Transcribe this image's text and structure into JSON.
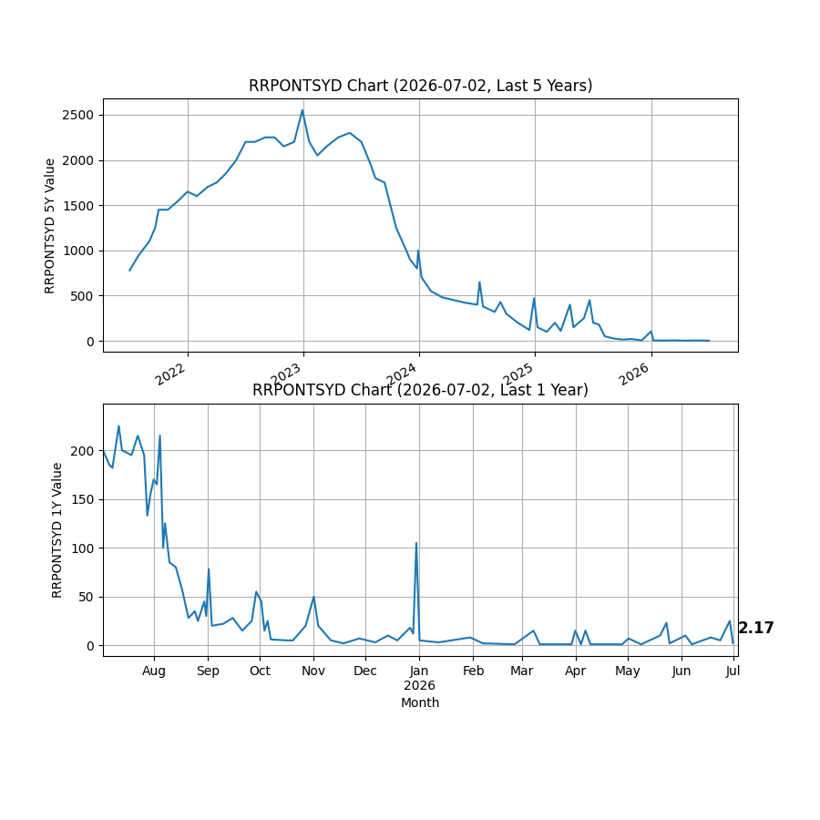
{
  "chart_data": [
    {
      "type": "line",
      "title": "RRPONTSYD Chart (2026-07-02, Last 5 Years)",
      "y_label": "RRPONTSYD 5Y Value",
      "color": "#1f77b4",
      "grid": true,
      "x": [
        2021.5,
        2021.58,
        2021.67,
        2021.72,
        2021.75,
        2021.83,
        2021.92,
        2022.0,
        2022.08,
        2022.17,
        2022.25,
        2022.33,
        2022.42,
        2022.5,
        2022.58,
        2022.67,
        2022.75,
        2022.83,
        2022.92,
        2022.99,
        2023.05,
        2023.12,
        2023.2,
        2023.3,
        2023.4,
        2023.5,
        2023.58,
        2023.62,
        2023.7,
        2023.75,
        2023.8,
        2023.87,
        2023.92,
        2023.98,
        2023.99,
        2024.02,
        2024.1,
        2024.2,
        2024.3,
        2024.4,
        2024.5,
        2024.52,
        2024.55,
        2024.65,
        2024.7,
        2024.75,
        2024.85,
        2024.95,
        2024.99,
        2025.02,
        2025.1,
        2025.17,
        2025.22,
        2025.3,
        2025.33,
        2025.42,
        2025.47,
        2025.5,
        2025.55,
        2025.6,
        2025.68,
        2025.75,
        2025.83,
        2025.92,
        2026.0,
        2026.02,
        2026.1,
        2026.2,
        2026.3,
        2026.4,
        2026.5
      ],
      "values": [
        780,
        950,
        1100,
        1250,
        1450,
        1450,
        1550,
        1650,
        1600,
        1700,
        1750,
        1850,
        2000,
        2200,
        2200,
        2250,
        2250,
        2150,
        2200,
        2550,
        2200,
        2050,
        2150,
        2250,
        2300,
        2200,
        1950,
        1800,
        1750,
        1500,
        1250,
        1050,
        900,
        800,
        1000,
        700,
        550,
        480,
        450,
        420,
        400,
        650,
        380,
        320,
        430,
        300,
        200,
        120,
        470,
        150,
        100,
        200,
        110,
        400,
        150,
        250,
        450,
        200,
        180,
        50,
        25,
        15,
        20,
        5,
        105,
        5,
        3,
        5,
        2,
        4,
        2.17
      ],
      "xlim": [
        2021.27,
        2026.75
      ],
      "xticks": [
        2022,
        2023,
        2024,
        2025,
        2026
      ],
      "ylim": [
        -121,
        2681
      ],
      "yticks": [
        0,
        500,
        1000,
        1500,
        2000,
        2500
      ]
    },
    {
      "type": "line",
      "title": "RRPONTSYD Chart (2026-07-02, Last 1 Year)",
      "x_label": "Month",
      "y_label": "RRPONTSYD 1Y Value",
      "color": "#1f77b4",
      "grid": true,
      "x": [
        2025.5,
        2025.51,
        2025.515,
        2025.525,
        2025.53,
        2025.545,
        2025.555,
        2025.565,
        2025.57,
        2025.575,
        2025.58,
        2025.585,
        2025.59,
        2025.595,
        2025.598,
        2025.605,
        2025.615,
        2025.625,
        2025.635,
        2025.645,
        2025.65,
        2025.66,
        2025.663,
        2025.667,
        2025.672,
        2025.69,
        2025.705,
        2025.72,
        2025.735,
        2025.742,
        2025.75,
        2025.755,
        2025.76,
        2025.765,
        2025.79,
        2025.8,
        2025.82,
        2025.833,
        2025.84,
        2025.86,
        2025.88,
        2025.905,
        2025.93,
        2025.95,
        2025.965,
        2025.985,
        2025.99,
        2025.995,
        2026.0,
        2026.03,
        2026.08,
        2026.1,
        2026.15,
        2026.18,
        2026.19,
        2026.24,
        2026.246,
        2026.255,
        2026.262,
        2026.27,
        2026.32,
        2026.33,
        2026.35,
        2026.38,
        2026.39,
        2026.395,
        2026.42,
        2026.43,
        2026.46,
        2026.475,
        2026.49,
        2026.495
      ],
      "values": [
        200,
        185,
        182,
        225,
        200,
        195,
        215,
        195,
        133,
        155,
        170,
        165,
        215,
        100,
        125,
        85,
        80,
        57,
        28,
        35,
        25,
        45,
        30,
        78,
        20,
        22,
        28,
        15,
        25,
        55,
        45,
        15,
        25,
        6,
        5,
        5,
        20,
        50,
        20,
        5,
        2,
        7,
        3,
        10,
        5,
        18,
        12,
        105,
        5,
        3,
        8,
        2,
        1,
        15,
        1,
        1,
        15,
        1,
        15,
        1,
        1,
        7,
        1,
        10,
        23,
        2,
        10,
        1,
        8,
        5,
        25,
        2.17
      ],
      "xlim": [
        2025.5,
        2026.503
      ],
      "xticks": [
        {
          "value": 2025.5808,
          "label": "Aug"
        },
        {
          "value": 2025.6658,
          "label": "Sep"
        },
        {
          "value": 2025.7479,
          "label": "Oct"
        },
        {
          "value": 2025.8329,
          "label": "Nov"
        },
        {
          "value": 2025.9151,
          "label": "Dec"
        },
        {
          "value": 2026.0,
          "label": "Jan\n2026"
        },
        {
          "value": 2026.0849,
          "label": "Feb"
        },
        {
          "value": 2026.1616,
          "label": "Mar"
        },
        {
          "value": 2026.2466,
          "label": "Apr"
        },
        {
          "value": 2026.3288,
          "label": "May"
        },
        {
          "value": 2026.4137,
          "label": "Jun"
        },
        {
          "value": 2026.4959,
          "label": "Jul"
        }
      ],
      "ylim": [
        -11,
        248
      ],
      "yticks": [
        0,
        50,
        100,
        150,
        200
      ],
      "annotations": [
        {
          "x": 2026.495,
          "y": 2.17,
          "text": "2.17"
        }
      ]
    }
  ]
}
